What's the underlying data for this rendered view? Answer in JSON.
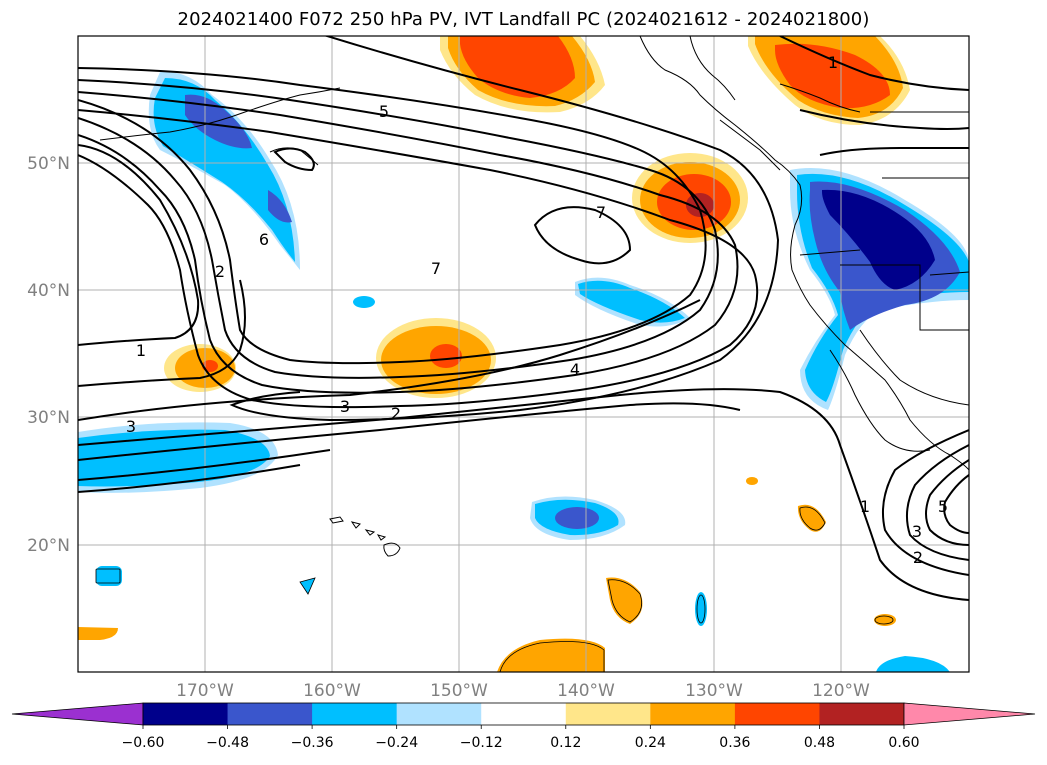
{
  "title": "2024021400 F072 250 hPa PV, IVT Landfall PC (2024021612 - 2024021800)",
  "lat_labels": [
    "50°N",
    "40°N",
    "30°N",
    "20°N"
  ],
  "lon_labels": [
    "170°W",
    "160°W",
    "150°W",
    "140°W",
    "130°W",
    "120°W"
  ],
  "contour_labels": [
    "5",
    "7",
    "7",
    "6",
    "2",
    "1",
    "3",
    "2",
    "4",
    "3",
    "1",
    "1",
    "3",
    "2",
    "5"
  ],
  "colorbar": {
    "ticks": [
      "−0.60",
      "−0.48",
      "−0.36",
      "−0.24",
      "−0.12",
      "0.12",
      "0.24",
      "0.36",
      "0.48",
      "0.60"
    ],
    "colors": [
      "#9b30d0",
      "#00008b",
      "#3a56cc",
      "#00bfff",
      "#b0e2ff",
      "#ffffff",
      "#ffe68a",
      "#ffa500",
      "#ff4500",
      "#b22222",
      "#ff88aa"
    ]
  }
}
